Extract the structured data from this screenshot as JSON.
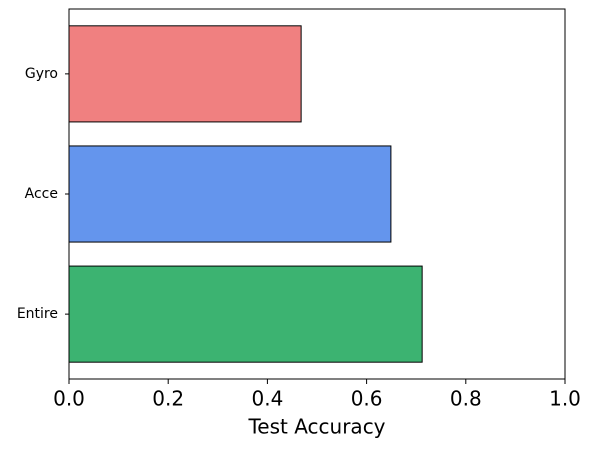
{
  "chart_data": {
    "type": "barh",
    "xlabel": "Test Accuracy",
    "categories": [
      "Entire",
      "Acce",
      "Gyro"
    ],
    "values": [
      0.712,
      0.649,
      0.468
    ],
    "colors": [
      "#3cb371",
      "#6495ed",
      "#f08080"
    ],
    "xlim": [
      0,
      1
    ],
    "xticks": [
      {
        "value": 0,
        "label": "0.0"
      },
      0.2,
      0.4,
      0.6,
      0.8,
      {
        "value": 1,
        "label": "1.0"
      }
    ]
  }
}
